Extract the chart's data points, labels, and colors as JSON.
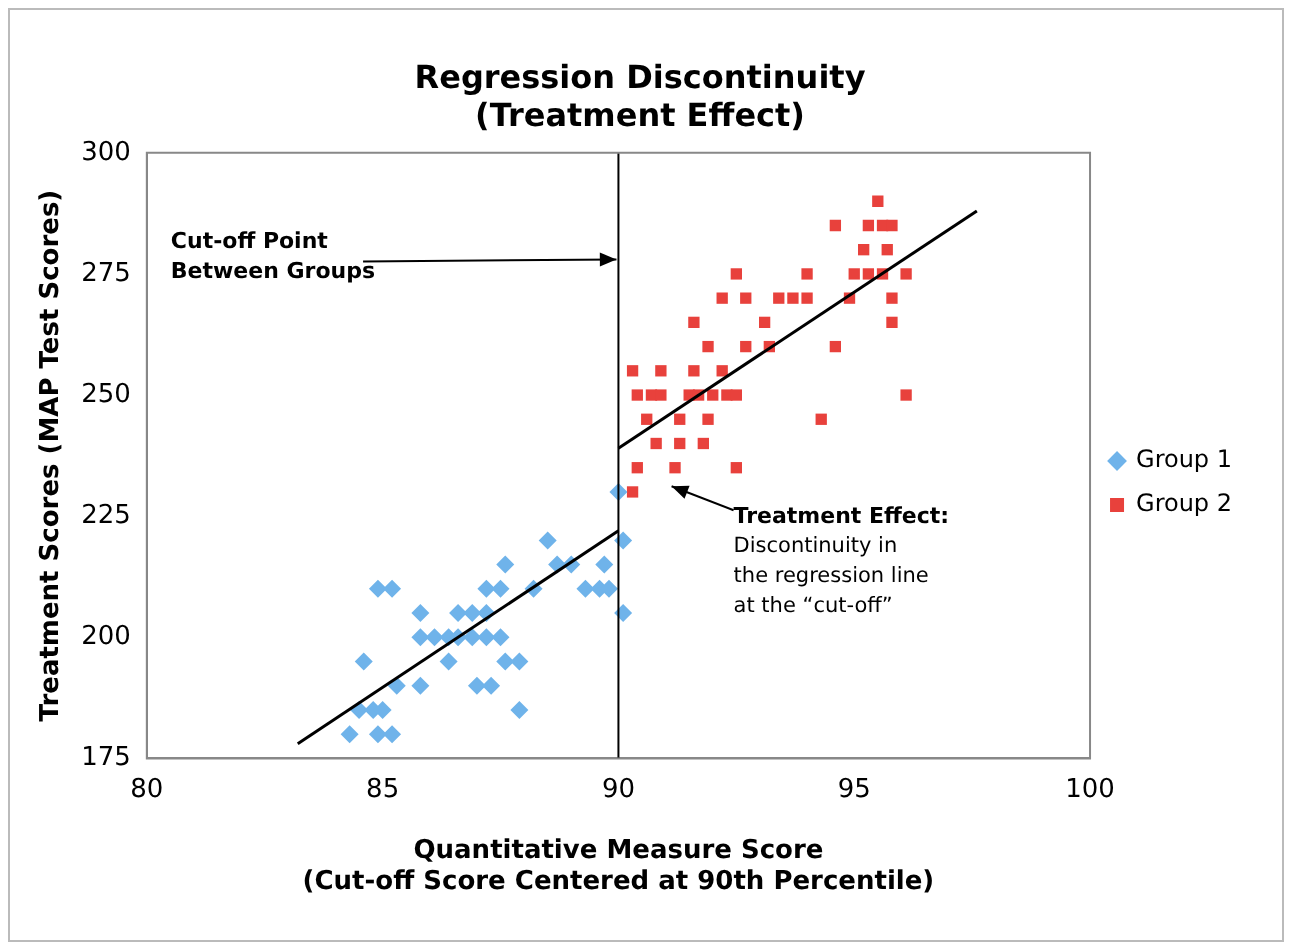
{
  "chart_data": {
    "type": "scatter",
    "title": "Regression Discontinuity\n(Treatment Effect)",
    "xlabel": "Quantitative Measure Score\n(Cut-off Score Centered at 90th Percentile)",
    "ylabel": "Treatment Scores (MAP Test Scores)",
    "xlim": [
      80,
      100
    ],
    "xticks": [
      80,
      85,
      90,
      95,
      100
    ],
    "ylim": [
      175,
      300
    ],
    "yticks": [
      175,
      200,
      225,
      250,
      275,
      300
    ],
    "grid": false,
    "legend": "right",
    "series": [
      {
        "name": "Group 1",
        "color": "#6fb3ea",
        "marker": "diamond",
        "x": [
          84.3,
          84.5,
          84.8,
          85.0,
          84.6,
          84.9,
          85.2,
          84.9,
          85.2,
          85.3,
          85.8,
          85.8,
          85.8,
          86.1,
          86.4,
          86.4,
          86.6,
          86.6,
          86.9,
          86.9,
          87.2,
          87.2,
          87.2,
          87.5,
          87.6,
          87.5,
          87.0,
          87.3,
          87.9,
          87.9,
          87.6,
          88.2,
          88.5,
          88.7,
          89.0,
          89.3,
          89.7,
          89.6,
          90.0,
          90.1,
          90.1,
          89.8
        ],
        "values": [
          180,
          185,
          185,
          185,
          195,
          210,
          210,
          180,
          180,
          190,
          205,
          190,
          200,
          200,
          195,
          200,
          205,
          200,
          205,
          200,
          200,
          205,
          210,
          210,
          215,
          200,
          190,
          190,
          195,
          185,
          195,
          210,
          220,
          215,
          215,
          210,
          215,
          210,
          230,
          220,
          205,
          210
        ]
      },
      {
        "name": "Group 2",
        "color": "#e8413c",
        "marker": "square",
        "x": [
          90.3,
          90.4,
          90.3,
          90.4,
          90.7,
          90.9,
          90.9,
          90.6,
          90.8,
          91.2,
          91.3,
          91.6,
          91.5,
          91.7,
          92.0,
          92.3,
          92.5,
          91.3,
          91.9,
          91.8,
          92.2,
          92.5,
          91.6,
          91.9,
          92.2,
          92.5,
          92.7,
          93.1,
          92.7,
          93.2,
          93.4,
          93.7,
          94.0,
          94.0,
          94.3,
          94.6,
          94.9,
          94.6,
          95.0,
          95.3,
          95.6,
          96.1,
          95.2,
          95.7,
          95.3,
          95.6,
          95.8,
          95.5,
          95.8,
          95.8,
          96.1
        ],
        "values": [
          230,
          235,
          255,
          250,
          250,
          255,
          250,
          245,
          240,
          235,
          240,
          255,
          250,
          250,
          250,
          250,
          250,
          245,
          245,
          240,
          255,
          235,
          265,
          260,
          270,
          275,
          270,
          265,
          260,
          260,
          270,
          270,
          270,
          275,
          245,
          285,
          270,
          260,
          275,
          275,
          275,
          275,
          280,
          280,
          285,
          285,
          285,
          290,
          270,
          265,
          250
        ]
      },
      {
        "type": "line",
        "color": "#000000",
        "marker": "none",
        "x": [
          83.2,
          90
        ],
        "values": [
          178,
          222
        ]
      },
      {
        "type": "line",
        "color": "#000000",
        "marker": "none",
        "x": [
          90,
          97.6
        ],
        "values": [
          239,
          288
        ]
      }
    ],
    "ref_lines": [
      {
        "axis": "x",
        "value": 90,
        "color": "#000000"
      }
    ],
    "annotations": [
      {
        "text": "Cut-off Point\nBetween Groups",
        "x": 90,
        "y": 278
      },
      {
        "text": "Treatment Effect:",
        "x": 91,
        "y": 232
      },
      "Discontinuity in\nthe regression line\nat the “cut-off”"
    ]
  }
}
